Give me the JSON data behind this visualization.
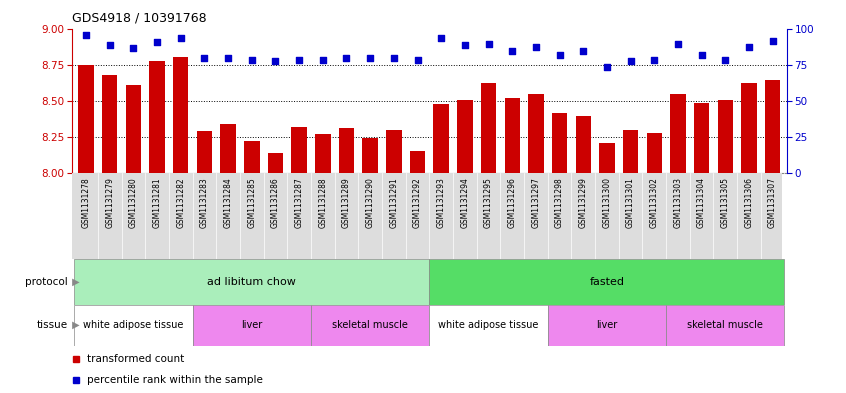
{
  "title": "GDS4918 / 10391768",
  "samples": [
    "GSM1131278",
    "GSM1131279",
    "GSM1131280",
    "GSM1131281",
    "GSM1131282",
    "GSM1131283",
    "GSM1131284",
    "GSM1131285",
    "GSM1131286",
    "GSM1131287",
    "GSM1131288",
    "GSM1131289",
    "GSM1131290",
    "GSM1131291",
    "GSM1131292",
    "GSM1131293",
    "GSM1131294",
    "GSM1131295",
    "GSM1131296",
    "GSM1131297",
    "GSM1131298",
    "GSM1131299",
    "GSM1131300",
    "GSM1131301",
    "GSM1131302",
    "GSM1131303",
    "GSM1131304",
    "GSM1131305",
    "GSM1131306",
    "GSM1131307"
  ],
  "red_values": [
    8.75,
    8.68,
    8.61,
    8.78,
    8.81,
    8.29,
    8.34,
    8.22,
    8.14,
    8.32,
    8.27,
    8.31,
    8.24,
    8.3,
    8.15,
    8.48,
    8.51,
    8.63,
    8.52,
    8.55,
    8.42,
    8.4,
    8.21,
    8.3,
    8.28,
    8.55,
    8.49,
    8.51,
    8.63,
    8.65
  ],
  "blue_values": [
    96,
    89,
    87,
    91,
    94,
    80,
    80,
    79,
    78,
    79,
    79,
    80,
    80,
    80,
    79,
    94,
    89,
    90,
    85,
    88,
    82,
    85,
    74,
    78,
    79,
    90,
    82,
    79,
    88,
    92
  ],
  "ylim_left": [
    8.0,
    9.0
  ],
  "ylim_right": [
    0,
    100
  ],
  "yticks_left": [
    8.0,
    8.25,
    8.5,
    8.75,
    9.0
  ],
  "yticks_right": [
    0,
    25,
    50,
    75,
    100
  ],
  "bar_color": "#cc0000",
  "dot_color": "#0000cc",
  "bg_color": "#ffffff",
  "protocol_groups": [
    {
      "label": "ad libitum chow",
      "start": 0,
      "end": 14,
      "color": "#aaeebb"
    },
    {
      "label": "fasted",
      "start": 15,
      "end": 29,
      "color": "#55dd66"
    }
  ],
  "tissue_groups": [
    {
      "label": "white adipose tissue",
      "start": 0,
      "end": 4,
      "color": "#ffffff"
    },
    {
      "label": "liver",
      "start": 5,
      "end": 9,
      "color": "#ee88ee"
    },
    {
      "label": "skeletal muscle",
      "start": 10,
      "end": 14,
      "color": "#ee88ee"
    },
    {
      "label": "white adipose tissue",
      "start": 15,
      "end": 19,
      "color": "#ffffff"
    },
    {
      "label": "liver",
      "start": 20,
      "end": 24,
      "color": "#ee88ee"
    },
    {
      "label": "skeletal muscle",
      "start": 25,
      "end": 29,
      "color": "#ee88ee"
    }
  ]
}
